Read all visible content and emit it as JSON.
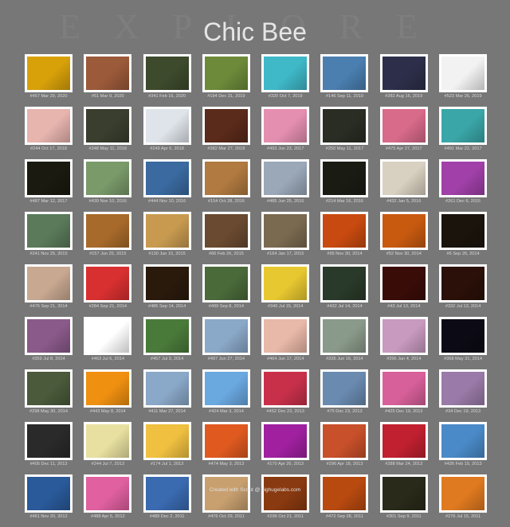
{
  "header": {
    "watermark": "EXPLORE",
    "title": "Chic Bee"
  },
  "footer": {
    "text": "Created with Scout @ bighugelabs.com"
  },
  "photos": [
    {
      "caption": "#457 Mar 29, 2020",
      "color": "#d8a10a"
    },
    {
      "caption": "#51 Mar 9, 2020",
      "color": "#9b5a3a"
    },
    {
      "caption": "#341 Feb 16, 2020",
      "color": "#3d4a2c"
    },
    {
      "caption": "#194 Dec 31, 2019",
      "color": "#6c8a3a"
    },
    {
      "caption": "#320 Oct 7, 2019",
      "color": "#3fb8c8"
    },
    {
      "caption": "#146 Sep 11, 2019",
      "color": "#4a7fb0"
    },
    {
      "caption": "#282 Aug 16, 2019",
      "color": "#2d2f4a"
    },
    {
      "caption": "#523 Mar 26, 2019",
      "color": "#f2f2f2"
    },
    {
      "caption": "#244 Oct 17, 2018",
      "color": "#e7b4ae"
    },
    {
      "caption": "#348 May 11, 2018",
      "color": "#3a3e2e"
    },
    {
      "caption": "#249 Apr 6, 2018",
      "color": "#dfe4ea"
    },
    {
      "caption": "#382 Mar 27, 2018",
      "color": "#5a2a1a"
    },
    {
      "caption": "#493 Jun 23, 2017",
      "color": "#e58fb0"
    },
    {
      "caption": "#250 May 11, 2017",
      "color": "#2a2d24"
    },
    {
      "caption": "#475 Apr 27, 2017",
      "color": "#d86a8a"
    },
    {
      "caption": "#491 Mar 22, 2017",
      "color": "#3aa6a8"
    },
    {
      "caption": "#487 Mar 12, 2017",
      "color": "#1a1a10"
    },
    {
      "caption": "#439 Nov 10, 2016",
      "color": "#7a9a6a"
    },
    {
      "caption": "#444 Nov 10, 2016",
      "color": "#3a6aa0"
    },
    {
      "caption": "#154 Oct 28, 2016",
      "color": "#b07a40"
    },
    {
      "caption": "#485 Jun 25, 2016",
      "color": "#9aa8b8"
    },
    {
      "caption": "#214 Mar 16, 2016",
      "color": "#1a1c14"
    },
    {
      "caption": "#432 Jan 5, 2016",
      "color": "#d8d0c0"
    },
    {
      "caption": "#261 Dec 6, 2015",
      "color": "#a040a8"
    },
    {
      "caption": "#241 Nov 25, 2015",
      "color": "#5a7a5a"
    },
    {
      "caption": "#157 Jun 25, 2015",
      "color": "#a86a2a"
    },
    {
      "caption": "#130 Jun 15, 2015",
      "color": "#c89a50"
    },
    {
      "caption": "#66 Feb 26, 2015",
      "color": "#6a4a30"
    },
    {
      "caption": "#164 Jan 17, 2015",
      "color": "#7a6a50"
    },
    {
      "caption": "#95 Nov 30, 2014",
      "color": "#c84a10"
    },
    {
      "caption": "#52 Nov 30, 2014",
      "color": "#c85a10"
    },
    {
      "caption": "#6 Sep 26, 2014",
      "color": "#1a140c"
    },
    {
      "caption": "#476 Sep 21, 2014",
      "color": "#c8a890"
    },
    {
      "caption": "#284 Sep 21, 2014",
      "color": "#d83030"
    },
    {
      "caption": "#486 Sep 14, 2014",
      "color": "#2a1a0c"
    },
    {
      "caption": "#499 Sep 8, 2014",
      "color": "#4a6a3a"
    },
    {
      "caption": "#340 Jul 15, 2014",
      "color": "#e8c830"
    },
    {
      "caption": "#432 Jul 14, 2014",
      "color": "#2a3a2a"
    },
    {
      "caption": "#43 Jul 13, 2014",
      "color": "#3a0c08"
    },
    {
      "caption": "#332 Jul 13, 2014",
      "color": "#2a1008"
    },
    {
      "caption": "#359 Jul 8, 2014",
      "color": "#8a5a8a"
    },
    {
      "caption": "#463 Jul 6, 2014",
      "color": "#ffffff"
    },
    {
      "caption": "#457 Jul 3, 2014",
      "color": "#4a7a3a"
    },
    {
      "caption": "#497 Jun 27, 2014",
      "color": "#8aa8c8"
    },
    {
      "caption": "#464 Jun 17, 2014",
      "color": "#e8b8a8"
    },
    {
      "caption": "#336 Jun 16, 2014",
      "color": "#8a9a8a"
    },
    {
      "caption": "#396 Jun 4, 2014",
      "color": "#c89ac0"
    },
    {
      "caption": "#368 May 31, 2014",
      "color": "#0c0a14"
    },
    {
      "caption": "#298 May 30, 2014",
      "color": "#4a5a3a"
    },
    {
      "caption": "#443 May 8, 2014",
      "color": "#f09010"
    },
    {
      "caption": "#411 Mar 27, 2014",
      "color": "#8aa8c8"
    },
    {
      "caption": "#424 Mar 3, 2014",
      "color": "#6aa8e0"
    },
    {
      "caption": "#452 Dec 23, 2013",
      "color": "#c8304a"
    },
    {
      "caption": "#75 Dec 23, 2013",
      "color": "#6a8ab0"
    },
    {
      "caption": "#425 Dec 19, 2013",
      "color": "#d8609a"
    },
    {
      "caption": "#34 Dec 19, 2013",
      "color": "#9a7aa8"
    },
    {
      "caption": "#405 Dec 11, 2013",
      "color": "#2a2a2a"
    },
    {
      "caption": "#244 Jul 7, 2013",
      "color": "#e8e0a0"
    },
    {
      "caption": "#174 Jul 1, 2013",
      "color": "#f0c040"
    },
    {
      "caption": "#474 May 3, 2013",
      "color": "#e05a20"
    },
    {
      "caption": "#170 Apr 26, 2013",
      "color": "#a020a0"
    },
    {
      "caption": "#296 Apr 18, 2013",
      "color": "#c8502a"
    },
    {
      "caption": "#288 Mar 24, 2013",
      "color": "#c02030"
    },
    {
      "caption": "#426 Feb 15, 2013",
      "color": "#4a8ac8"
    },
    {
      "caption": "#461 Nov 20, 2012",
      "color": "#2a5a9a"
    },
    {
      "caption": "#488 Apr 5, 2012",
      "color": "#e060a0"
    },
    {
      "caption": "#489 Dec 2, 2011",
      "color": "#3a6ab0"
    },
    {
      "caption": "#476 Oct 29, 2011",
      "color": "#c8a070"
    },
    {
      "caption": "#296 Oct 21, 2011",
      "color": "#8a3a10"
    },
    {
      "caption": "#472 Sep 28, 2011",
      "color": "#b84a10"
    },
    {
      "caption": "#301 Sep 9, 2011",
      "color": "#2a2a1a"
    },
    {
      "caption": "#276 Jul 15, 2011",
      "color": "#e07a20"
    }
  ]
}
